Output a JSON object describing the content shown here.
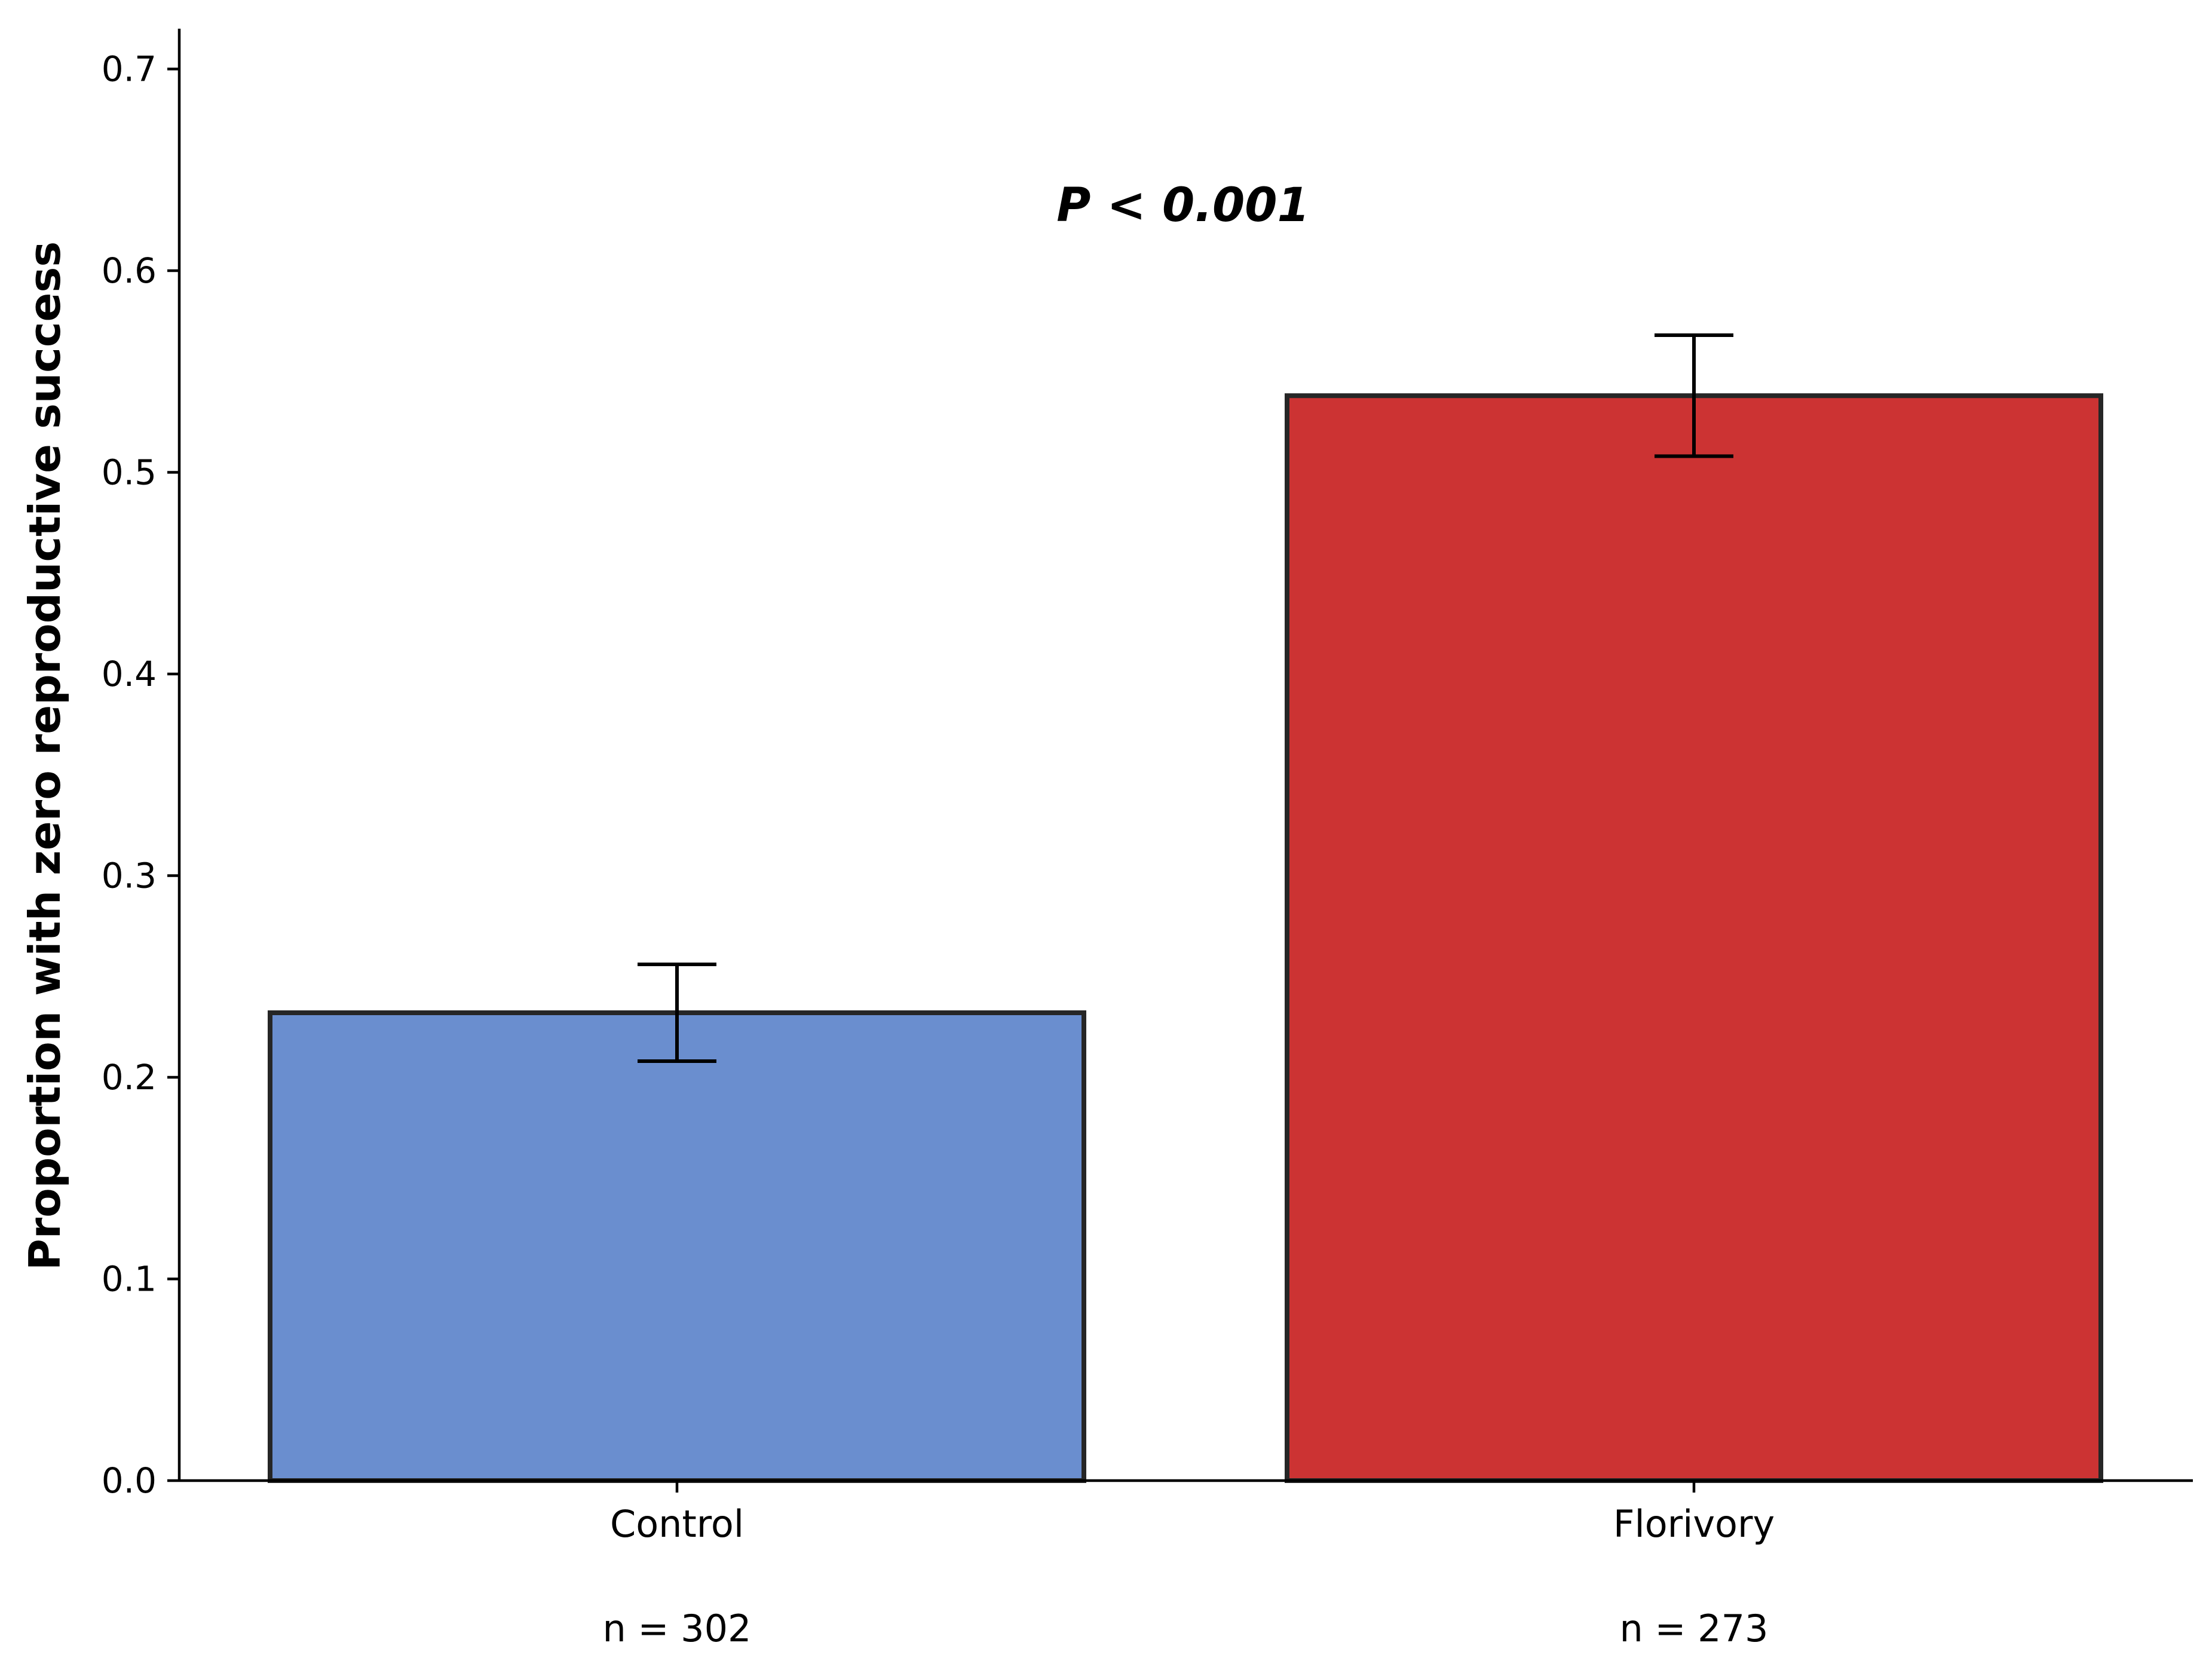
{
  "chart_data": {
    "type": "bar",
    "title": "",
    "xlabel": "",
    "ylabel": "Proportion with zero reproductive success",
    "ylim": [
      0,
      0.72
    ],
    "yticks": [
      "0.0",
      "0.1",
      "0.2",
      "0.3",
      "0.4",
      "0.5",
      "0.6",
      "0.7"
    ],
    "categories": [
      "Control",
      "Florivory"
    ],
    "values": [
      0.232,
      0.538
    ],
    "error_low": [
      0.208,
      0.508
    ],
    "error_high": [
      0.256,
      0.568
    ],
    "sample_sizes": [
      "n = 302",
      "n = 273"
    ],
    "colors": [
      "#6a8ecf",
      "#cc3333"
    ],
    "annotation": "P < 0.001",
    "grid": false,
    "legend": "none"
  }
}
